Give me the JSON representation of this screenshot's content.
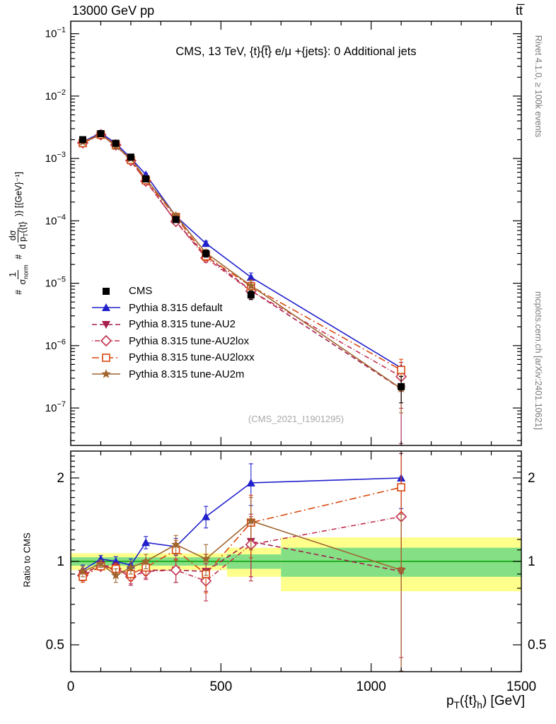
{
  "labels": {
    "top_left": "13000 GeV pp",
    "top_right": "tt̅",
    "title": "CMS, 13 TeV, {t}{t̅} e/μ +{jets}: 0 Additional jets",
    "watermark": "(CMS_2021_I1901295)",
    "right_top": "Rivet 4.1.0, ≥ 100k events",
    "right_bottom": "mcplots.cern.ch [arXiv:2401.10621]",
    "ratio_ylabel": "Ratio to CMS",
    "ylabel_parts": {
      "hash1": "#",
      "frac1_num": "1",
      "frac1_den_base": "σ",
      "frac1_den_sub": "norm",
      "hash2": "#",
      "frac2_num": "dσ",
      "frac2_den_base": "d p",
      "frac2_den_sub": "T",
      "frac2_den_rest": "({t}",
      "tail": ")} [{GeV}⁻¹]"
    },
    "xlabel_parts": {
      "p": "p",
      "sub_T": "T",
      "mid": "({t}",
      "sub_h": "h",
      "tail": ") [GeV]"
    }
  },
  "chart_data": {
    "type": "line",
    "title": "CMS, 13 TeV, {t}{t̅} e/μ +{jets}: 0 Additional jets",
    "xlabel": "p_T({t}_h) [GeV]",
    "ylabel": "1/σ_norm dσ/d p_T({t}_h) [GeV⁻¹]",
    "ratio_ylabel": "Ratio to CMS",
    "xlim": [
      0,
      1500
    ],
    "xticks": [
      0,
      500,
      1000,
      1500
    ],
    "x_minor_step": 100,
    "main_ylog_range": [
      -7.6,
      -0.8
    ],
    "main_yticks_exponents": [
      -1,
      -2,
      -3,
      -4,
      -5,
      -6,
      -7
    ],
    "ratio_ylog_range": [
      0.4,
      2.5
    ],
    "ratio_yticks": [
      0.5,
      1,
      2
    ],
    "x": [
      40,
      100,
      150,
      200,
      250,
      350,
      450,
      600,
      1100
    ],
    "cms": {
      "name": "CMS",
      "color": "#000000",
      "marker": "square",
      "values": [
        0.002,
        0.0025,
        0.00175,
        0.00105,
        0.00047,
        0.000105,
        3e-05,
        6.5e-06,
        2.2e-07
      ],
      "rel_err": [
        0.06,
        0.04,
        0.045,
        0.05,
        0.06,
        0.1,
        0.13,
        0.16,
        0.45
      ]
    },
    "series": [
      {
        "name": "Pythia 8.315 default",
        "color": "#2020cc",
        "marker": "triangle-up",
        "dash": "",
        "ratio": [
          0.93,
          1.02,
          1.0,
          0.97,
          1.17,
          1.13,
          1.45,
          1.92,
          2.0
        ],
        "ratio_err": [
          0.04,
          0.03,
          0.04,
          0.05,
          0.06,
          0.08,
          0.13,
          0.33,
          0.45
        ]
      },
      {
        "name": "Pythia 8.315 tune-AU2",
        "color": "#a61e4d",
        "marker": "triangle-down",
        "dash": "7,4",
        "ratio": [
          0.9,
          0.97,
          0.95,
          0.87,
          0.93,
          0.93,
          0.92,
          1.18,
          0.92
        ],
        "ratio_err": [
          0.04,
          0.03,
          0.04,
          0.05,
          0.06,
          0.09,
          0.14,
          0.3,
          0.9
        ]
      },
      {
        "name": "Pythia 8.315 tune-AU2lox",
        "color": "#c2304e",
        "marker": "diamond-open",
        "dash": "1,3,7,3",
        "ratio": [
          0.89,
          0.96,
          0.94,
          0.88,
          0.92,
          0.93,
          0.85,
          1.15,
          1.45
        ],
        "ratio_err": [
          0.04,
          0.03,
          0.04,
          0.05,
          0.06,
          0.09,
          0.13,
          0.3,
          1.0
        ]
      },
      {
        "name": "Pythia 8.315 tune-AU2loxx",
        "color": "#d9480f",
        "marker": "square-open",
        "dash": "10,4,2,4",
        "ratio": [
          0.88,
          0.96,
          0.94,
          0.9,
          0.95,
          1.1,
          0.9,
          1.38,
          1.85
        ],
        "ratio_err": [
          0.04,
          0.03,
          0.04,
          0.05,
          0.06,
          0.09,
          0.13,
          0.35,
          0.9
        ]
      },
      {
        "name": "Pythia 8.315 tune-AU2m",
        "color": "#a0652f",
        "marker": "star",
        "dash": "",
        "ratio": [
          0.92,
          0.98,
          0.89,
          0.95,
          1.0,
          1.15,
          1.02,
          1.4,
          0.93
        ],
        "ratio_err": [
          0.04,
          0.03,
          0.05,
          0.05,
          0.06,
          0.09,
          0.13,
          0.3,
          0.55
        ]
      }
    ],
    "bands": {
      "yellow_color": "#ffff8c",
      "green_color": "#85e085",
      "green_line_color": "#00a000",
      "yellow": [
        [
          0,
          520,
          0.93,
          1.07
        ],
        [
          520,
          700,
          0.88,
          1.12
        ],
        [
          700,
          1500,
          0.78,
          1.22
        ]
      ],
      "green": [
        [
          0,
          520,
          0.965,
          1.035
        ],
        [
          520,
          700,
          0.94,
          1.06
        ],
        [
          700,
          1500,
          0.88,
          1.12
        ]
      ]
    },
    "legend_position": "middle-left",
    "grid": false
  }
}
